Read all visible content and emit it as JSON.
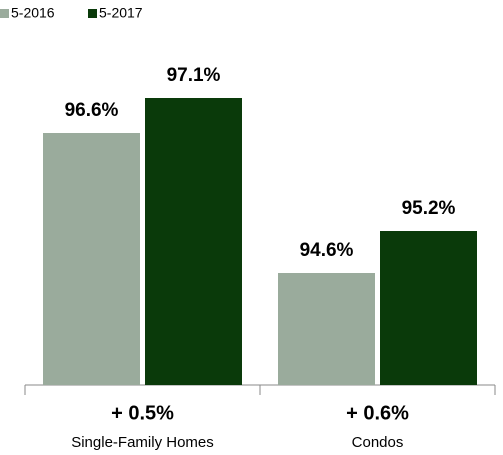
{
  "chart_data": {
    "type": "bar",
    "categories": [
      "Single-Family Homes",
      "Condos"
    ],
    "annotations": [
      "+ 0.5%",
      "+ 0.6%"
    ],
    "series": [
      {
        "name": "5-2016",
        "color": "#9aab9c",
        "values": [
          96.6,
          94.6
        ],
        "value_labels": [
          "96.6%",
          "94.6%"
        ]
      },
      {
        "name": "5-2017",
        "color": "#0a3a0a",
        "values": [
          97.1,
          95.2
        ],
        "value_labels": [
          "97.1%",
          "95.2%"
        ]
      }
    ],
    "ylim": [
      93,
      98.5
    ],
    "legend": "top-left"
  }
}
